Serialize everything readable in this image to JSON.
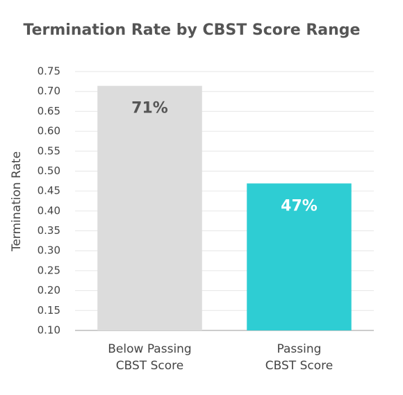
{
  "chart_data": {
    "type": "bar",
    "title": "Termination Rate by CBST Score Range",
    "y_label": "Termination Rate",
    "categories": [
      [
        "Below Passing",
        "CBST Score"
      ],
      [
        "Passing",
        "CBST Score"
      ]
    ],
    "values": [
      0.714,
      0.469
    ],
    "value_labels": [
      "71%",
      "47%"
    ],
    "colors": [
      "#dcdcdc",
      "#2ecdd3"
    ],
    "value_label_colors": [
      "#555555",
      "#ffffff"
    ],
    "ylim": [
      0.1,
      0.75
    ],
    "yticks": [
      {
        "value": 0.1,
        "label": "0.10"
      },
      {
        "value": 0.15,
        "label": "0.15"
      },
      {
        "value": 0.2,
        "label": "0.20"
      },
      {
        "value": 0.25,
        "label": "0.25"
      },
      {
        "value": 0.3,
        "label": "0.30"
      },
      {
        "value": 0.35,
        "label": "0.35"
      },
      {
        "value": 0.4,
        "label": "0.40"
      },
      {
        "value": 0.45,
        "label": "0.45"
      },
      {
        "value": 0.5,
        "label": "0.50"
      },
      {
        "value": 0.55,
        "label": "0.55"
      },
      {
        "value": 0.6,
        "label": "0.60"
      },
      {
        "value": 0.65,
        "label": "0.65"
      },
      {
        "value": 0.7,
        "label": "0.70"
      },
      {
        "value": 0.75,
        "label": "0.75"
      }
    ],
    "grid": true
  }
}
